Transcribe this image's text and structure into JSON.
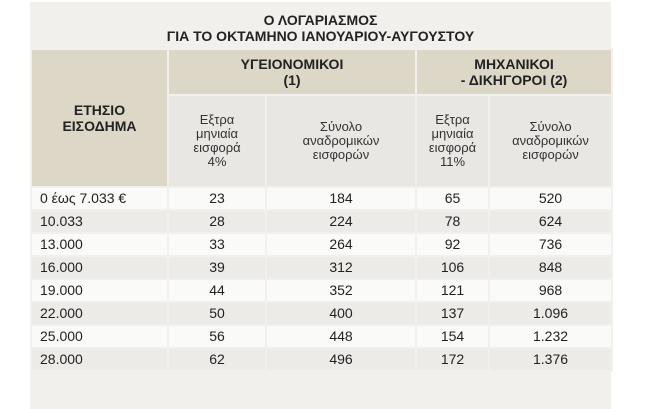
{
  "title": {
    "line1": "Ο ΛΟΓΑΡΙΑΣΜΟΣ",
    "line2": "ΓΙΑ ΤΟ ΟΚΤΑΜΗΝΟ ΙΑΝΟΥΑΡΙΟΥ-ΑΥΓΟΥΣΤΟΥ"
  },
  "headers": {
    "income_line1": "ΕΤΗΣΙΟ",
    "income_line2": "ΕΙΣΟΔΗΜΑ",
    "health_line1": "ΥΓΕΙΟΝΟΜΙΚΟΙ",
    "health_line2": "(1)",
    "eng_line1": "ΜΗΧΑΝΙΚΟΙ",
    "eng_line2": "- ΔΙΚΗΓΟΡΟΙ (2)",
    "health_extra": [
      "Εξτρα",
      "μηνιαία",
      "εισφορά",
      "4%"
    ],
    "health_total": [
      "Σύνολο",
      "αναδρομικών",
      "εισφορών"
    ],
    "eng_extra": [
      "Εξτρα",
      "μηνιαία",
      "εισφορά",
      "11%"
    ],
    "eng_total": [
      "Σύνολο",
      "αναδρομικών",
      "εισφορών"
    ]
  },
  "rows": [
    [
      "0 έως 7.033 €",
      "23",
      "184",
      "65",
      "520"
    ],
    [
      "10.033",
      "28",
      "224",
      "78",
      "624"
    ],
    [
      "13.000",
      "33",
      "264",
      "92",
      "736"
    ],
    [
      "16.000",
      "39",
      "312",
      "106",
      "848"
    ],
    [
      "19.000",
      "44",
      "352",
      "121",
      "968"
    ],
    [
      "22.000",
      "50",
      "400",
      "137",
      "1.096"
    ],
    [
      "25.000",
      "56",
      "448",
      "154",
      "1.232"
    ],
    [
      "28.000",
      "62",
      "496",
      "172",
      "1.376"
    ]
  ]
}
